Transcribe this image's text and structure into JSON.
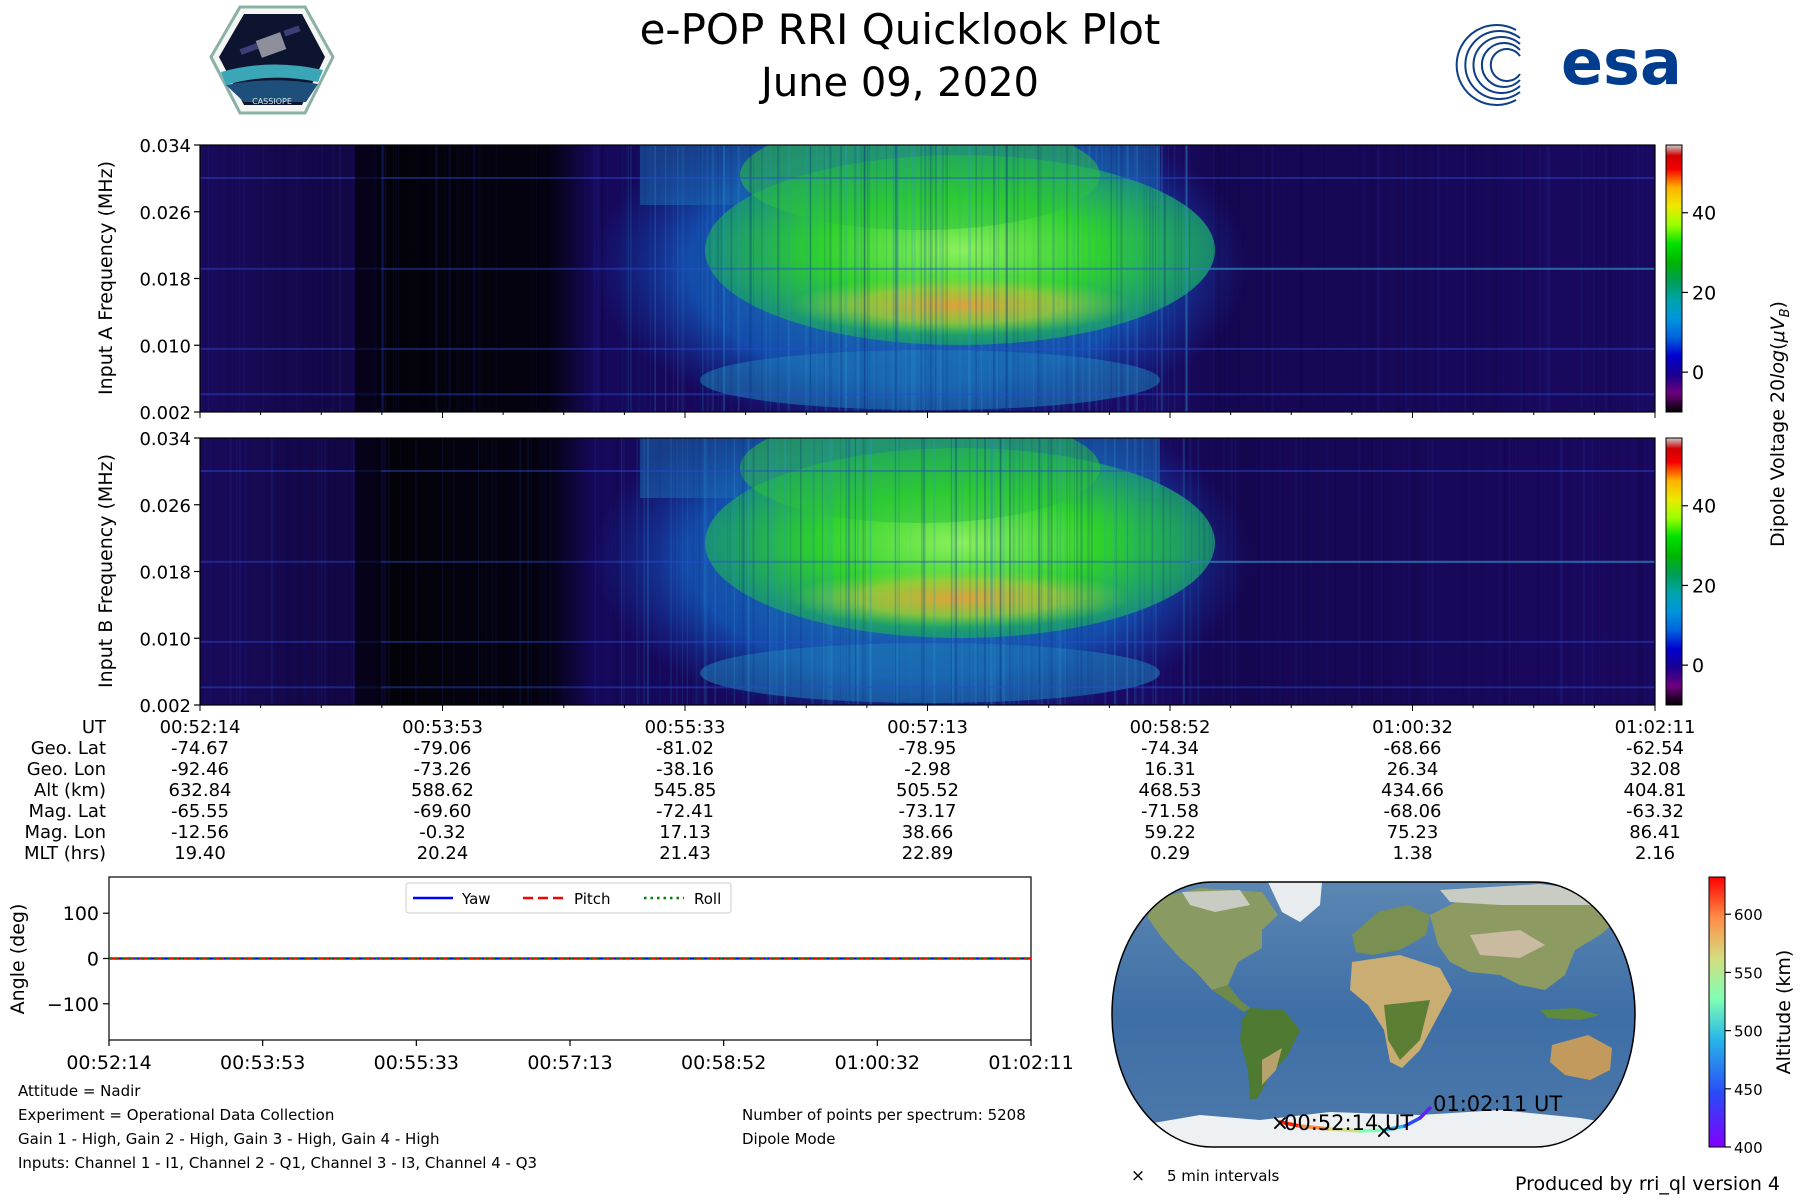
{
  "title": "e-POP RRI Quicklook Plot",
  "subtitle": "June 09, 2020",
  "logos": {
    "left": "cassiope-mission-logo",
    "right_text": "esa",
    "right_mark": "esa-swirl-icon",
    "cassiope_text": "CASSIOPE"
  },
  "spectrogram": {
    "type": "heatmap",
    "panels": [
      {
        "ylabel": "Input A Frequency (MHz)"
      },
      {
        "ylabel": "Input B Frequency (MHz)"
      }
    ],
    "yticks": [
      "0.002",
      "0.010",
      "0.018",
      "0.026",
      "0.034"
    ],
    "yvalues": [
      0.002,
      0.01,
      0.018,
      0.026,
      0.034
    ],
    "ylim": [
      0.002,
      0.034
    ],
    "colorbar": {
      "ticks": [
        "0",
        "20",
        "40"
      ],
      "tick_values": [
        0,
        20,
        40
      ],
      "range": [
        -10,
        57
      ],
      "colormap": "nipy_spectral"
    },
    "colorbar_label": {
      "prefix": "Dipole Voltage 20",
      "italic": "log",
      "mid": "(",
      "mu": "μ",
      "v": "V",
      "sub": "B",
      "end": ")"
    }
  },
  "ephemeris": {
    "row_labels": [
      "UT",
      "Geo. Lat",
      "Geo. Lon",
      "Alt (km)",
      "Mag. Lat",
      "Mag. Lon",
      "MLT (hrs)"
    ],
    "columns": [
      [
        "00:52:14",
        "-74.67",
        "-92.46",
        "632.84",
        "-65.55",
        "-12.56",
        "19.40"
      ],
      [
        "00:53:53",
        "-79.06",
        "-73.26",
        "588.62",
        "-69.60",
        "-0.32",
        "20.24"
      ],
      [
        "00:55:33",
        "-81.02",
        "-38.16",
        "545.85",
        "-72.41",
        "17.13",
        "21.43"
      ],
      [
        "00:57:13",
        "-78.95",
        "-2.98",
        "505.52",
        "-73.17",
        "38.66",
        "22.89"
      ],
      [
        "00:58:52",
        "-74.34",
        "16.31",
        "468.53",
        "-71.58",
        "59.22",
        "0.29"
      ],
      [
        "01:00:32",
        "-68.66",
        "26.34",
        "434.66",
        "-68.06",
        "75.23",
        "1.38"
      ],
      [
        "01:02:11",
        "-62.54",
        "32.08",
        "404.81",
        "-63.32",
        "86.41",
        "2.16"
      ]
    ]
  },
  "chart_data": {
    "type": "line",
    "ylabel": "Angle (deg)",
    "ylim": [
      -180,
      180
    ],
    "yticks": [
      "100",
      "0",
      "−100"
    ],
    "ytick_values": [
      100,
      0,
      -100
    ],
    "x": [
      "00:52:14",
      "00:53:53",
      "00:55:33",
      "00:57:13",
      "00:58:52",
      "01:00:32",
      "01:02:11"
    ],
    "grid": false,
    "legend_position": "top-center",
    "series": [
      {
        "name": "Yaw",
        "color": "#0000ff",
        "style": "solid",
        "values": [
          0,
          0,
          0,
          0,
          0,
          0,
          0
        ]
      },
      {
        "name": "Pitch",
        "color": "#ff0000",
        "style": "dashed",
        "values": [
          0,
          0,
          0,
          0,
          0,
          0,
          0
        ]
      },
      {
        "name": "Roll",
        "color": "#008000",
        "style": "dotted",
        "values": [
          0,
          0,
          0,
          0,
          0,
          0,
          0
        ]
      }
    ]
  },
  "info_left": [
    "Attitude = Nadir",
    "Experiment = Operational Data Collection",
    "Gain 1 - High, Gain 2 - High, Gain 3 - High, Gain 4 - High",
    "Inputs: Channel 1 - I1, Channel 2 - Q1, Channel 3 - I3, Channel 4 - Q3"
  ],
  "info_right": [
    "Number of points per spectrum: 5208",
    "Dipole Mode"
  ],
  "map": {
    "start_label": "00:52:14 UT",
    "end_label": "01:02:11 UT",
    "marker_note": "5 min intervals",
    "marker_symbol": "×",
    "colorbar_label": "Altitude (km)",
    "colorbar_ticks": [
      "400",
      "450",
      "500",
      "550",
      "600"
    ],
    "colorbar_values": [
      400,
      450,
      500,
      550,
      600
    ],
    "colorbar_range": [
      400,
      632
    ]
  },
  "footer": "Produced by rri_ql version 4"
}
